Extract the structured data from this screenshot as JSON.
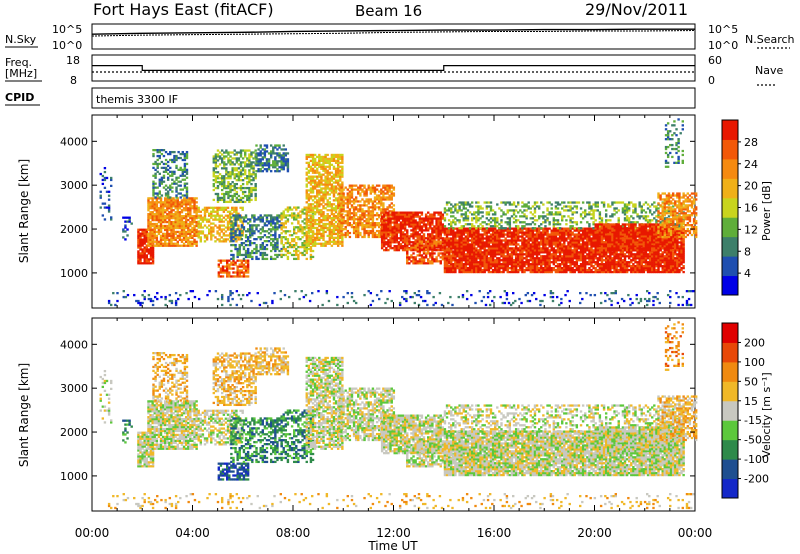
{
  "header": {
    "station": "Fort Hays East (fitACF)",
    "beam": "Beam 16",
    "date": "29/Nov/2011"
  },
  "status_panels": {
    "nsky_label": "N.Sky",
    "nsearch_label": "N.Search",
    "freq_label": "Freq.",
    "freq_unit": "[MHz]",
    "nave_label": "Nave",
    "cpid_label": "CPID",
    "cpid_value": "themis 3300 IF",
    "noise_ticks_left": [
      "10^5",
      "10^0"
    ],
    "noise_ticks_right": [
      "10^5",
      "10^0"
    ],
    "freq_ticks": [
      "18",
      "8"
    ],
    "nave_ticks": [
      "60",
      "0"
    ]
  },
  "colors": {
    "power_scale": [
      "#0000e6",
      "#1f4fb0",
      "#3d7f6a",
      "#5fae3a",
      "#c8d41e",
      "#f0b018",
      "#f58a10",
      "#f25808",
      "#e81800"
    ],
    "velocity_scale": [
      "#1428c8",
      "#1f4f90",
      "#2e8a4a",
      "#5cc83c",
      "#c8c8c0",
      "#f0b828",
      "#f08a10",
      "#e84808",
      "#e00000"
    ]
  },
  "chart_data": [
    {
      "type": "line",
      "name": "noise",
      "series": [
        {
          "name": "N.Sky",
          "values": [
            3.0,
            3.2,
            3.3,
            3.4,
            3.6,
            3.7,
            3.8,
            3.9,
            3.9,
            4.0,
            4.0,
            4.1,
            4.1
          ]
        },
        {
          "name": "N.Search",
          "values": [
            2.6,
            2.8,
            2.9,
            3.0,
            3.1,
            3.2,
            3.4,
            3.5,
            3.6,
            3.6,
            3.7,
            3.7,
            3.8
          ]
        }
      ],
      "x": [
        0,
        2,
        4,
        6,
        8,
        10,
        12,
        14,
        16,
        18,
        20,
        22,
        24
      ],
      "ylim": [
        0,
        5
      ]
    },
    {
      "type": "line",
      "name": "frequency-nave",
      "series": [
        {
          "name": "Freq.",
          "points": [
            [
              0,
              14
            ],
            [
              2,
              14
            ],
            [
              2,
              12
            ],
            [
              14,
              12
            ],
            [
              14,
              14
            ],
            [
              24,
              14
            ]
          ]
        },
        {
          "name": "Nave",
          "points": [
            [
              0,
              20
            ],
            [
              24,
              20
            ]
          ]
        }
      ],
      "ylim_freq": [
        8,
        18
      ],
      "ylim_nave": [
        0,
        60
      ]
    },
    {
      "type": "heatmap",
      "name": "power",
      "xlabel": "",
      "ylabel": "Slant Range [km]",
      "xlim": [
        0,
        24
      ],
      "ylim": [
        200,
        4600
      ],
      "y_ticks": [
        "4000",
        "3000",
        "2000",
        "1000"
      ],
      "colorbar_label": "Power [dB]",
      "colorbar_ticks": [
        "28",
        "24",
        "20",
        "16",
        "12",
        "8",
        "4"
      ],
      "colorbar_range": [
        0,
        32
      ]
    },
    {
      "type": "heatmap",
      "name": "velocity",
      "xlabel": "Time UT",
      "ylabel": "Slant Range [km]",
      "xlim": [
        0,
        24
      ],
      "ylim": [
        200,
        4600
      ],
      "x_ticks": [
        "00:00",
        "04:00",
        "08:00",
        "12:00",
        "16:00",
        "20:00",
        "00:00"
      ],
      "y_ticks": [
        "4000",
        "3000",
        "2000",
        "1000"
      ],
      "colorbar_label": "Velocity [m s⁻¹]",
      "colorbar_ticks": [
        "200",
        "100",
        "50",
        "15",
        "-15",
        "-50",
        "-100",
        "-200"
      ],
      "colorbar_range": [
        -250,
        250
      ]
    }
  ]
}
